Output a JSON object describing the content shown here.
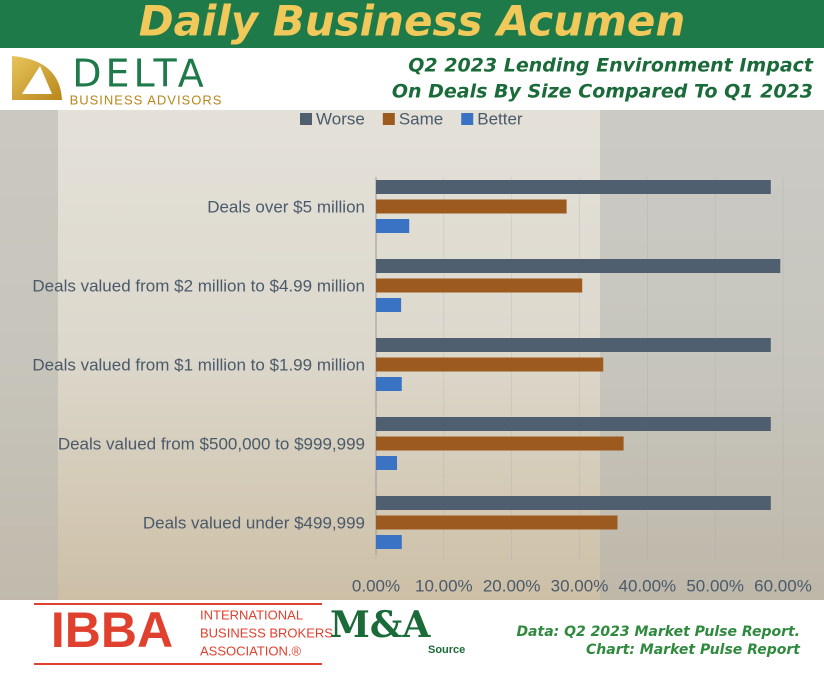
{
  "header": {
    "title": "Daily Business Acumen"
  },
  "logo": {
    "name": "DELTA",
    "tagline": "BUSINESS ADVISORS"
  },
  "chart_data": {
    "type": "bar",
    "orientation": "horizontal",
    "title": [
      "Q2 2023 Lending Environment Impact",
      "On Deals By Size Compared To Q1 2023"
    ],
    "categories": [
      "Deals over $5 million",
      "Deals valued from $2 million to $4.99 million",
      "Deals valued from $1 million to $1.99 million",
      "Deals valued from $500,000 to $999,999",
      "Deals valued under $499,999"
    ],
    "series": [
      {
        "name": "Worse",
        "color": "#4f5f70",
        "values": [
          58.2,
          59.6,
          58.2,
          58.2,
          58.2
        ]
      },
      {
        "name": "Same",
        "color": "#9c5a1e",
        "values": [
          28.1,
          30.4,
          33.5,
          36.5,
          35.6
        ]
      },
      {
        "name": "Better",
        "color": "#3a72c4",
        "values": [
          4.9,
          3.7,
          3.8,
          3.1,
          3.8
        ]
      }
    ],
    "xlim": [
      0,
      60
    ],
    "xticks": [
      {
        "value": 0,
        "label": "0.00%"
      },
      {
        "value": 10,
        "label": "10.00%"
      },
      {
        "value": 20,
        "label": "20.00%"
      },
      {
        "value": 30,
        "label": "30.00%"
      },
      {
        "value": 40,
        "label": "40.00%"
      },
      {
        "value": 50,
        "label": "50.00%"
      },
      {
        "value": 60,
        "label": "60.00%"
      }
    ],
    "legend": "top"
  },
  "footer": {
    "ibba": {
      "short": "IBBA",
      "lines": [
        "INTERNATIONAL",
        "BUSINESS BROKERS",
        "ASSOCIATION.®"
      ]
    },
    "ma": {
      "short": "M&A",
      "sub": "Source"
    },
    "notes": [
      "Data: Q2 2023 Market Pulse Report.",
      "Chart: Market Pulse Report"
    ]
  }
}
